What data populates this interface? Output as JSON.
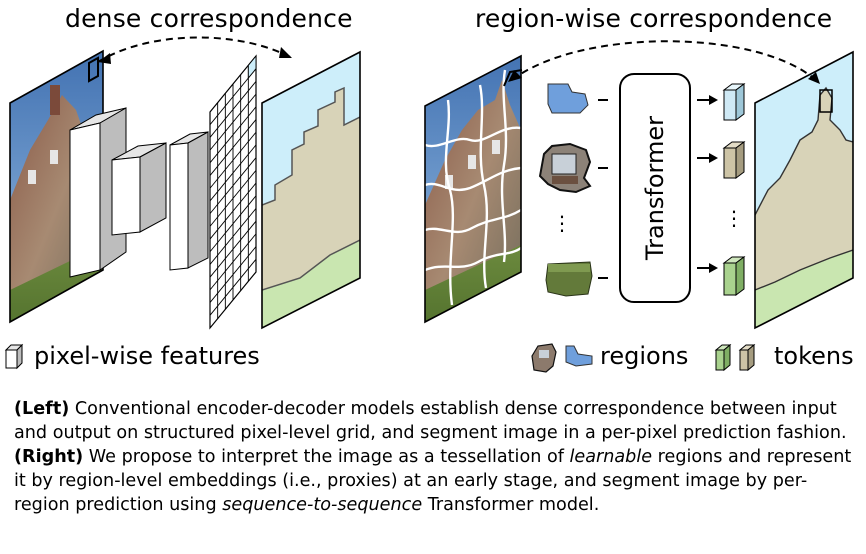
{
  "left_panel": {
    "title": "dense correspondence",
    "legend_label": "pixel-wise features"
  },
  "right_panel": {
    "title": "region-wise correspondence",
    "transformer_label": "Transformer",
    "ellipsis": "⋮",
    "legend_regions_label": "regions",
    "legend_tokens_label": "tokens"
  },
  "caption": {
    "left_tag": "(Left)",
    "left_text": " Conventional encoder-decoder models establish dense correspondence between input and output on structured pixel-level grid, and segment image in a per-pixel prediction fashion. ",
    "right_tag": "(Right)",
    "right_text_1": " We propose to interpret the image as a tessellation of ",
    "learnable": "learnable",
    "right_text_2": " regions and represent it by region-level embeddings (i.e., proxies) at an early stage, and segment image by per-region prediction using ",
    "seq2seq": "sequence-to-sequence",
    "right_text_3": " Transformer model."
  },
  "colors": {
    "sky": "#cdeefa",
    "building": "#d8d3b8",
    "grass": "#c9e6b0",
    "region_blue": "#6f9fdc",
    "token_blue": "#cfe9f5",
    "token_tan": "#cdc4a6",
    "token_green": "#a9d28e"
  }
}
